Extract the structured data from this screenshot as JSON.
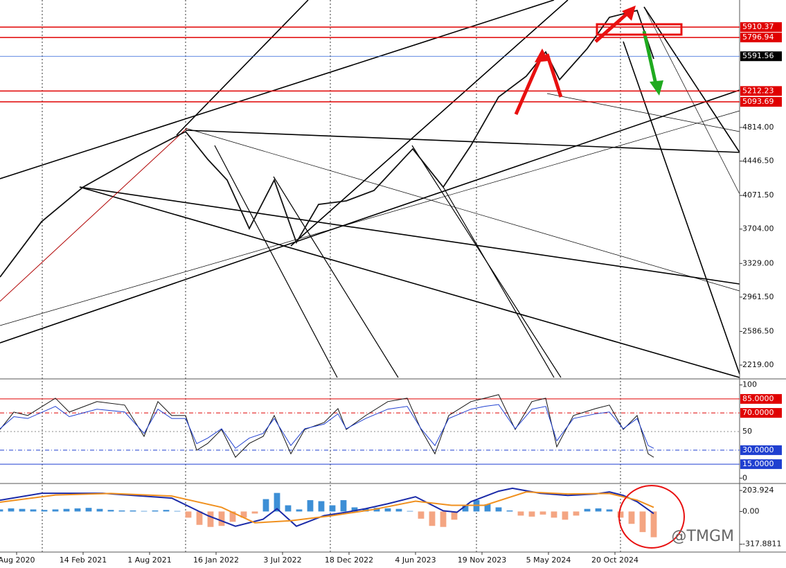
{
  "chart_data": [
    {
      "type": "line",
      "color": "#111111",
      "x": [
        0,
        15,
        30,
        50,
        67,
        75,
        82,
        90,
        99,
        107,
        115,
        125,
        135,
        149,
        160,
        170,
        180,
        190,
        197,
        202,
        212,
        220,
        230,
        236
      ],
      "values": [
        3180,
        3785,
        4163,
        4504,
        4769,
        4466,
        4239,
        3710,
        4239,
        3558,
        3974,
        4012,
        4126,
        4580,
        4163,
        4617,
        5147,
        5374,
        5638,
        5336,
        5676,
        6017,
        6092,
        5563
      ],
      "xlim": [
        0,
        267
      ],
      "ylim": [
        2068,
        6206
      ],
      "yticks": [
        {
          "value": 2219,
          "label": "2219.00"
        },
        {
          "value": 2586.5,
          "label": "2586.50"
        },
        {
          "value": 2961.5,
          "label": "2961.50"
        },
        {
          "value": 3329,
          "label": "3329.00"
        },
        {
          "value": 3704,
          "label": "3704.00"
        },
        {
          "value": 4071.5,
          "label": "4071.50"
        },
        {
          "value": 4446.5,
          "label": "4446.50"
        },
        {
          "value": 4814,
          "label": "4814.00"
        }
      ],
      "hlines": [
        {
          "value": 5910.37,
          "color": "#e00000"
        },
        {
          "value": 5796.94,
          "color": "#e00000"
        },
        {
          "value": 5212.23,
          "color": "#e00000"
        },
        {
          "value": 5093.69,
          "color": "#e00000"
        }
      ],
      "last_price": {
        "value": 5591.56,
        "color": "#2a62d8"
      }
    },
    {
      "type": "line",
      "series": [
        {
          "color": "#111111",
          "x": [
            0,
            5,
            10,
            20,
            25,
            35,
            45,
            52,
            57,
            62,
            67,
            71,
            75,
            80,
            85,
            90,
            95,
            99,
            105,
            110,
            117,
            122,
            125,
            132,
            140,
            147,
            152,
            157,
            162,
            170,
            175,
            180,
            186,
            192,
            197,
            201,
            207,
            215,
            220,
            225,
            230,
            234,
            236
          ],
          "values": [
            52.2,
            70.9,
            67.2,
            85.8,
            70.9,
            82.1,
            78.4,
            44.8,
            82.1,
            67.2,
            67.2,
            29.9,
            37.3,
            52.2,
            22.4,
            37.3,
            44.8,
            67.2,
            26.1,
            52.2,
            59.7,
            74.6,
            52.2,
            67.2,
            82.1,
            85.8,
            52.2,
            26.1,
            67.2,
            82.1,
            85.8,
            89.6,
            52.2,
            82.1,
            85.8,
            33.6,
            67.2,
            74.6,
            78.4,
            52.2,
            67.2,
            26.1,
            22.4
          ]
        },
        {
          "color": "#1f3fd0",
          "x": [
            0,
            5,
            10,
            20,
            25,
            35,
            45,
            52,
            57,
            62,
            67,
            71,
            75,
            80,
            85,
            90,
            95,
            99,
            105,
            110,
            117,
            122,
            125,
            132,
            140,
            147,
            152,
            157,
            162,
            170,
            175,
            180,
            186,
            192,
            197,
            201,
            207,
            215,
            220,
            225,
            230,
            234,
            236
          ],
          "values": [
            53,
            66,
            64,
            77,
            66,
            74,
            71,
            48,
            74,
            64,
            64,
            37,
            43,
            53,
            32,
            43,
            48,
            64,
            35,
            53,
            58,
            69,
            53,
            64,
            74,
            77,
            53,
            35,
            64,
            74,
            77,
            79,
            53,
            74,
            77,
            40,
            64,
            69,
            71,
            53,
            64,
            35,
            32
          ]
        }
      ],
      "xlim": [
        0,
        267
      ],
      "ylim": [
        -5,
        105
      ],
      "yticks": [
        100,
        0
      ],
      "levels": [
        {
          "value": 85,
          "label": "85.0000",
          "color": "#e00000",
          "style": "solid"
        },
        {
          "value": 70,
          "label": "70.0000",
          "color": "#e00000",
          "style": "dashdot"
        },
        {
          "value": 50,
          "color": "#888888",
          "style": "dotted"
        },
        {
          "value": 30,
          "label": "30.0000",
          "color": "#1f3fd0",
          "style": "dashdot"
        },
        {
          "value": 15,
          "label": "15.0000",
          "color": "#1f3fd0",
          "style": "solid"
        }
      ]
    },
    {
      "type": "bar",
      "histogram": {
        "x": [
          0,
          4,
          8,
          12,
          16,
          20,
          24,
          28,
          32,
          36,
          40,
          44,
          48,
          52,
          56,
          60,
          64,
          68,
          72,
          76,
          80,
          84,
          88,
          92,
          96,
          100,
          104,
          108,
          112,
          116,
          120,
          124,
          128,
          132,
          136,
          140,
          144,
          148,
          152,
          156,
          160,
          164,
          168,
          172,
          176,
          180,
          184,
          188,
          192,
          196,
          200,
          204,
          208,
          212,
          216,
          220,
          224,
          228,
          232,
          236
        ],
        "values": [
          20,
          30,
          25,
          20,
          15,
          20,
          25,
          30,
          35,
          25,
          15,
          10,
          10,
          5,
          10,
          15,
          5,
          -60,
          -130,
          -150,
          -140,
          -100,
          -60,
          -20,
          120,
          180,
          60,
          20,
          110,
          100,
          60,
          110,
          40,
          30,
          35,
          30,
          25,
          5,
          -70,
          -140,
          -150,
          -80,
          60,
          110,
          70,
          40,
          10,
          -40,
          -50,
          -30,
          -60,
          -80,
          -40,
          25,
          30,
          20,
          -60,
          -120,
          -200,
          -250
        ],
        "up_color": "#3d8fd6",
        "down_color": "#f4a582"
      },
      "series": [
        {
          "color": "#1a2aa8",
          "x": [
            0,
            15,
            37,
            62,
            75,
            85,
            95,
            100,
            107,
            117,
            125,
            132,
            140,
            150,
            160,
            165,
            170,
            180,
            185,
            195,
            205,
            215,
            220,
            225,
            230,
            236
          ],
          "values": [
            109,
            177,
            177,
            130,
            -40,
            -143,
            -75,
            27,
            -143,
            -40,
            -7,
            27,
            75,
            143,
            7,
            -7,
            95,
            197,
            225,
            177,
            156,
            170,
            190,
            156,
            95,
            -20
          ]
        },
        {
          "color": "#f0901e",
          "x": [
            0,
            20,
            40,
            62,
            80,
            92,
            105,
            120,
            135,
            150,
            163,
            175,
            190,
            205,
            220,
            230,
            236
          ],
          "values": [
            90,
            160,
            175,
            150,
            40,
            -110,
            -90,
            -40,
            20,
            100,
            60,
            60,
            190,
            170,
            175,
            110,
            40
          ]
        }
      ],
      "xlim": [
        0,
        267
      ],
      "ylim": [
        -394,
        265
      ],
      "yticks": [
        203.924,
        {
          "value": 0,
          "label": "0.00"
        },
        -317.8811
      ],
      "xticks": [
        {
          "value": 6,
          "label": "Aug 2020"
        },
        {
          "value": 30,
          "label": "14 Feb 2021"
        },
        {
          "value": 54,
          "label": "1 Aug 2021"
        },
        {
          "value": 78,
          "label": "16 Jan 2022"
        },
        {
          "value": 102,
          "label": "3 Jul 2022"
        },
        {
          "value": 126,
          "label": "18 Dec 2022"
        },
        {
          "value": 150,
          "label": "4 Jun 2023"
        },
        {
          "value": 174,
          "label": "19 Nov 2023"
        },
        {
          "value": 198,
          "label": "5 May 2024"
        },
        {
          "value": 222,
          "label": "20 Oct 2024"
        }
      ]
    }
  ],
  "watermark": "@TMGM"
}
